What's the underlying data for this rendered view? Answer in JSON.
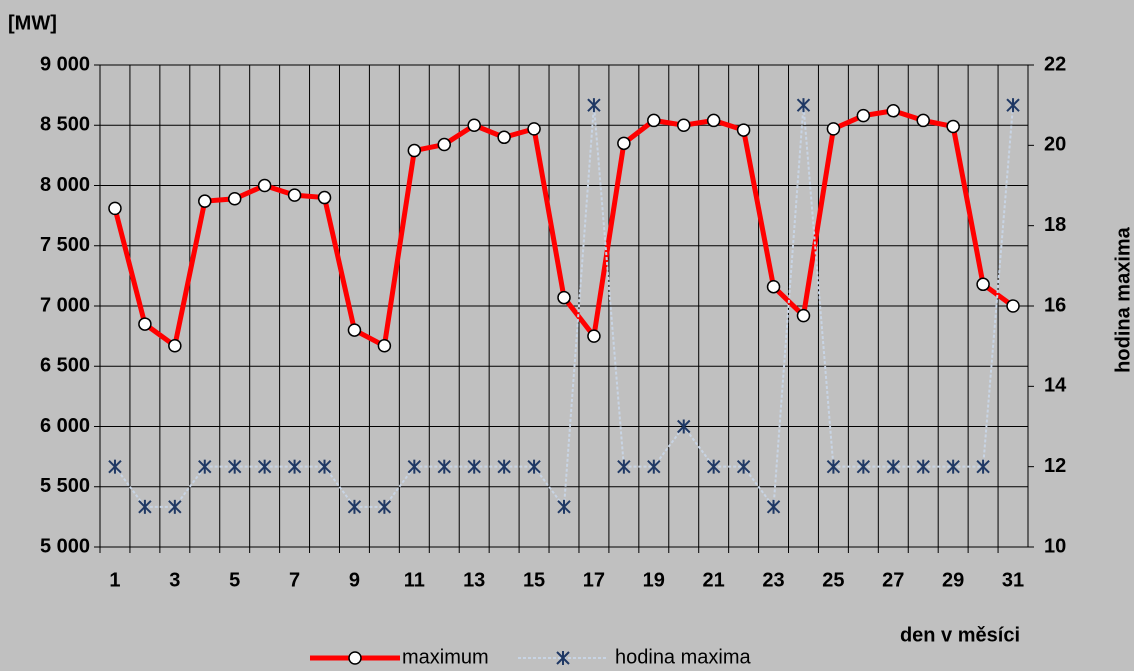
{
  "chart_data": {
    "type": "line",
    "y_label": "[MW]",
    "y2_label": "hodina maxima",
    "x_label": "den v měsíci",
    "categories": [
      "1",
      null,
      "3",
      null,
      "5",
      null,
      "7",
      null,
      "9",
      null,
      "11",
      null,
      "13",
      null,
      "15",
      null,
      "17",
      null,
      "19",
      null,
      "21",
      null,
      "23",
      null,
      "25",
      null,
      "27",
      null,
      "29",
      null,
      "31"
    ],
    "series": [
      {
        "name": "maximum",
        "color": "#ff0000",
        "values": [
          7810,
          6850,
          6670,
          7870,
          7890,
          8000,
          7920,
          7900,
          6800,
          6670,
          8290,
          8340,
          8500,
          8400,
          8470,
          7070,
          6750,
          8350,
          8540,
          8500,
          8540,
          8460,
          7160,
          6920,
          8470,
          8580,
          8620,
          8540,
          8490,
          7180,
          7000
        ]
      },
      {
        "name": "hodina maxima",
        "color": "#c8d4e4",
        "marker_color": "#1f3864",
        "axis": "y2",
        "values": [
          12,
          11,
          11,
          12,
          12,
          12,
          12,
          12,
          11,
          11,
          12,
          12,
          12,
          12,
          12,
          11,
          21,
          12,
          12,
          13,
          12,
          12,
          11,
          21,
          12,
          12,
          12,
          12,
          12,
          12,
          21
        ]
      }
    ],
    "ylim": [
      5000,
      9000
    ],
    "yticks": [
      {
        "value": 5000,
        "label": "5 000"
      },
      {
        "value": 5500,
        "label": "5 500"
      },
      {
        "value": 6000,
        "label": "6 000"
      },
      {
        "value": 6500,
        "label": "6 500"
      },
      {
        "value": 7000,
        "label": "7 000"
      },
      {
        "value": 7500,
        "label": "7 500"
      },
      {
        "value": 8000,
        "label": "8 000"
      },
      {
        "value": 8500,
        "label": "8 500"
      },
      {
        "value": 9000,
        "label": "9 000"
      }
    ],
    "y2lim": [
      10,
      22
    ],
    "y2ticks": [
      10,
      12,
      14,
      16,
      18,
      20,
      22
    ],
    "grid": true,
    "legend": "bottom"
  }
}
